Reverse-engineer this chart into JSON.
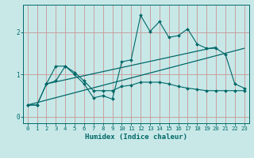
{
  "xlabel": "Humidex (Indice chaleur)",
  "bg_color": "#c8e8e8",
  "grid_color": "#c8a0a0",
  "line_color": "#006868",
  "xlim": [
    -0.5,
    23.5
  ],
  "ylim": [
    -0.15,
    2.65
  ],
  "xticks": [
    0,
    1,
    2,
    3,
    4,
    5,
    6,
    7,
    8,
    9,
    10,
    11,
    12,
    13,
    14,
    15,
    16,
    17,
    18,
    19,
    20,
    21,
    22,
    23
  ],
  "yticks": [
    0,
    1,
    2
  ],
  "line1_x": [
    0,
    1,
    2,
    3,
    4,
    5,
    6,
    7,
    8,
    9,
    10,
    11,
    12,
    13,
    14,
    15,
    16,
    17,
    18,
    19,
    20,
    21,
    22,
    23
  ],
  "line1_y": [
    0.28,
    0.28,
    0.78,
    1.2,
    1.2,
    1.0,
    0.78,
    0.45,
    0.5,
    0.42,
    1.3,
    1.35,
    2.4,
    2.02,
    2.25,
    1.88,
    1.92,
    2.08,
    1.72,
    1.62,
    1.62,
    1.48,
    0.78,
    0.68
  ],
  "line2_x": [
    0,
    1,
    2,
    3,
    4,
    5,
    6,
    7,
    8,
    9,
    10,
    11,
    12,
    13,
    14,
    15,
    16,
    17,
    18,
    19,
    20,
    21,
    22,
    23
  ],
  "line2_y": [
    0.28,
    0.28,
    0.78,
    0.85,
    1.2,
    1.05,
    0.85,
    0.62,
    0.62,
    0.62,
    0.72,
    0.75,
    0.82,
    0.82,
    0.82,
    0.78,
    0.72,
    0.68,
    0.65,
    0.62,
    0.62,
    0.62,
    0.62,
    0.62
  ],
  "trend1_x": [
    0,
    23
  ],
  "trend1_y": [
    0.28,
    1.62
  ],
  "trend2_x": [
    2,
    20
  ],
  "trend2_y": [
    0.78,
    1.65
  ]
}
